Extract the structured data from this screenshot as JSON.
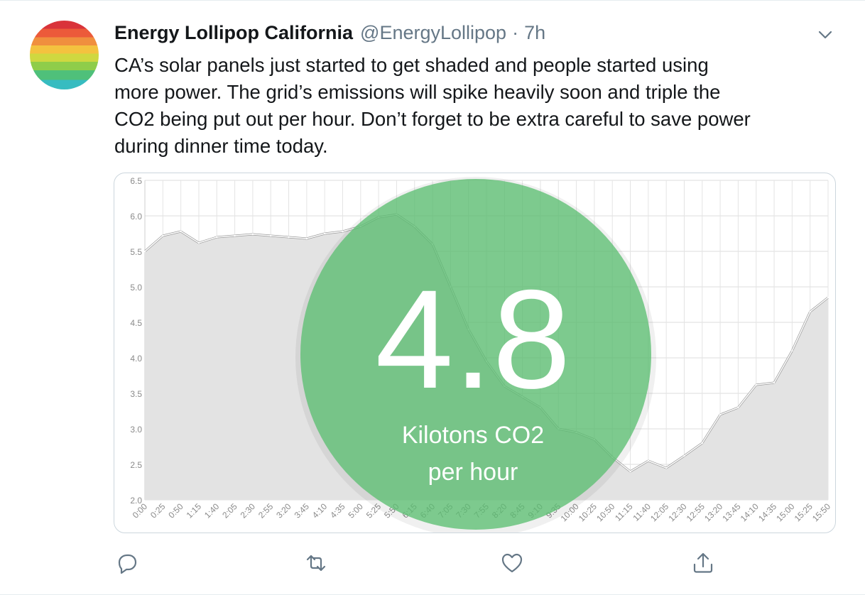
{
  "tweet": {
    "author_name": "Energy Lollipop California",
    "handle": "@EnergyLollipop",
    "separator": "·",
    "time": "7h",
    "text_lines": [
      "CA’s solar panels just started to get shaded and people started using",
      "more power. The grid’s emissions will spike heavily soon and triple the",
      "CO2 being put out per hour. Don’t forget to be extra careful to save power",
      "during dinner time today."
    ]
  },
  "icons": {
    "more": "chevron-down-icon",
    "reply": "reply-icon",
    "retweet": "retweet-icon",
    "like": "heart-icon",
    "share": "share-icon"
  },
  "colors": {
    "circle": "#5cbf72",
    "fill": "#e3e3e3",
    "line": "#ffffff",
    "text_secondary": "#657786"
  },
  "overlay": {
    "value": "4.8",
    "unit_line1": "Kilotons CO2",
    "unit_line2": "per hour"
  },
  "chart_data": {
    "type": "area",
    "ylim": [
      2.0,
      6.5
    ],
    "yticks": [
      "2.0",
      "2.5",
      "3.0",
      "3.5",
      "4.0",
      "4.5",
      "5.0",
      "5.5",
      "6.0",
      "6.5"
    ],
    "xticks": [
      "0:00",
      "0:25",
      "0:50",
      "1:15",
      "1:40",
      "2:05",
      "2:30",
      "2:55",
      "3:20",
      "3:45",
      "4:10",
      "4:35",
      "5:00",
      "5:25",
      "5:50",
      "6:15",
      "6:40",
      "7:05",
      "7:30",
      "7:55",
      "8:20",
      "8:45",
      "9:10",
      "9:35",
      "10:00",
      "10:25",
      "10:50",
      "11:15",
      "11:40",
      "12:05",
      "12:30",
      "12:55",
      "13:20",
      "13:45",
      "14:10",
      "14:35",
      "15:00",
      "15:25",
      "15:50"
    ],
    "series": [
      {
        "x": [
          "0:00",
          "0:25",
          "0:50",
          "1:15",
          "1:40",
          "2:05",
          "2:30",
          "2:55",
          "3:20",
          "3:45",
          "4:10",
          "4:35",
          "5:00",
          "5:25",
          "5:50",
          "6:15",
          "6:40",
          "7:05",
          "7:30",
          "7:55",
          "8:20",
          "8:45",
          "9:10",
          "9:35",
          "10:00",
          "10:25",
          "10:50",
          "11:15",
          "11:40",
          "12:05",
          "12:30",
          "12:55",
          "13:20",
          "13:45",
          "14:10",
          "14:35",
          "15:00",
          "15:25",
          "15:50"
        ],
        "values": [
          5.5,
          5.72,
          5.78,
          5.62,
          5.7,
          5.72,
          5.74,
          5.72,
          5.7,
          5.68,
          5.75,
          5.78,
          5.85,
          5.98,
          6.02,
          5.85,
          5.6,
          5.0,
          4.4,
          3.95,
          3.6,
          3.45,
          3.3,
          3.0,
          2.95,
          2.85,
          2.6,
          2.4,
          2.55,
          2.45,
          2.62,
          2.8,
          3.2,
          3.3,
          3.62,
          3.65,
          4.1,
          4.65,
          4.85
        ]
      }
    ]
  }
}
